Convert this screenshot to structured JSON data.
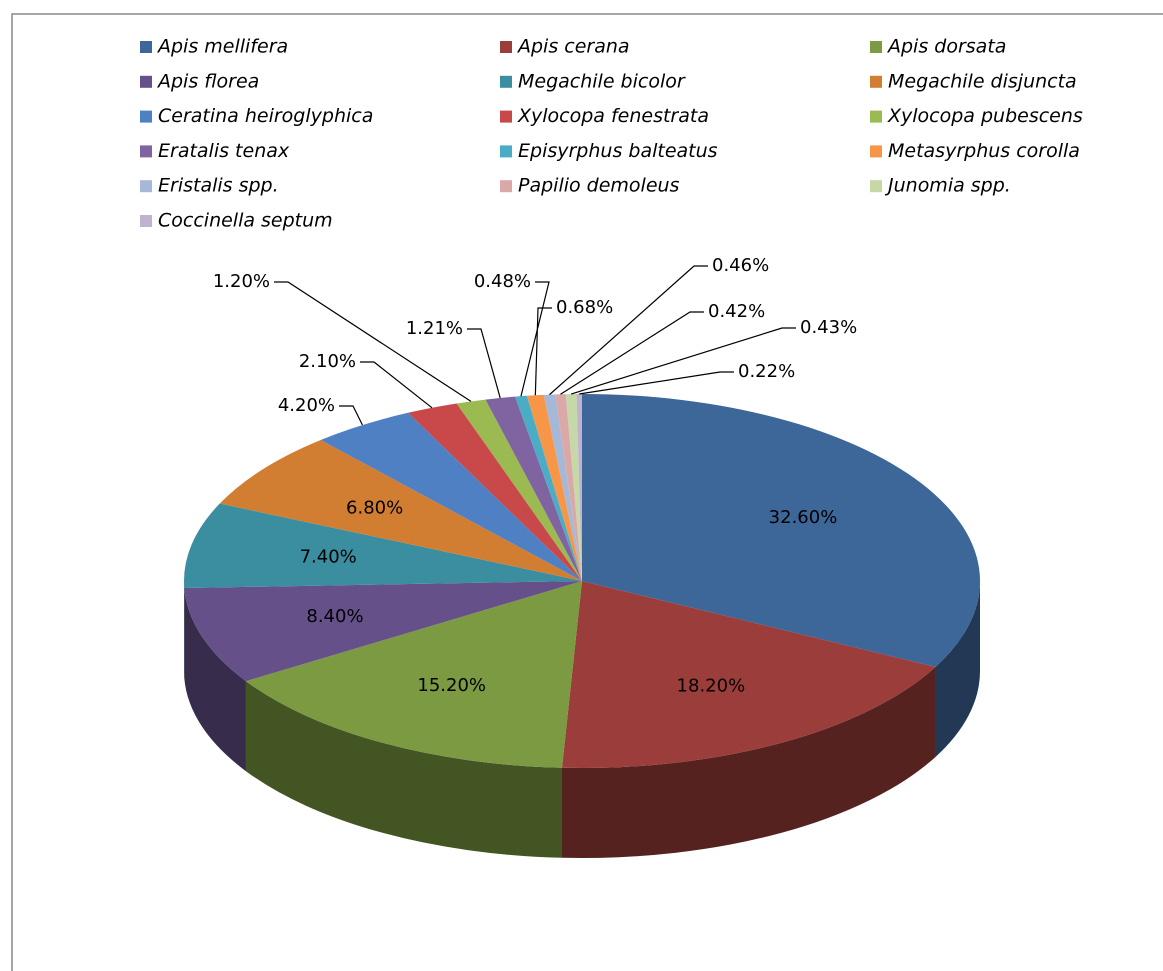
{
  "chart_data": {
    "type": "pie",
    "categories": [
      "Apis mellifera",
      "Apis cerana",
      "Apis dorsata",
      "Apis florea",
      "Megachile bicolor",
      "Megachile disjuncta",
      "Ceratina heiroglyphica",
      "Xylocopa  fenestrata",
      "Xylocopa  pubescens",
      "Eratalis tenax",
      "Episyrphus balteatus",
      "Metasyrphus corolla",
      "Eristalis spp.",
      "Papilio demoleus",
      "Junomia spp.",
      "Coccinella septum"
    ],
    "values": [
      32.6,
      18.2,
      15.2,
      8.4,
      7.4,
      6.8,
      4.2,
      2.1,
      1.2,
      1.21,
      0.48,
      0.68,
      0.46,
      0.42,
      0.43,
      0.22
    ],
    "value_labels": [
      "32.60%",
      "18.20%",
      "15.20%",
      "8.40%",
      "7.40%",
      "6.80%",
      "4.20%",
      "2.10%",
      "1.20%",
      "1.21%",
      "0.48%",
      "0.68%",
      "0.46%",
      "0.42%",
      "0.43%",
      "0.22%"
    ],
    "colors": [
      "#3D6699",
      "#9B3D3B",
      "#7B9A42",
      "#66508A",
      "#3A8EA0",
      "#D17E32",
      "#4F80C4",
      "#C9494A",
      "#9BBA52",
      "#8064A2",
      "#4BACC6",
      "#F79646",
      "#A5B8D8",
      "#DBA8A8",
      "#C6D8A8",
      "#C0B3D0"
    ],
    "legend": "top"
  }
}
